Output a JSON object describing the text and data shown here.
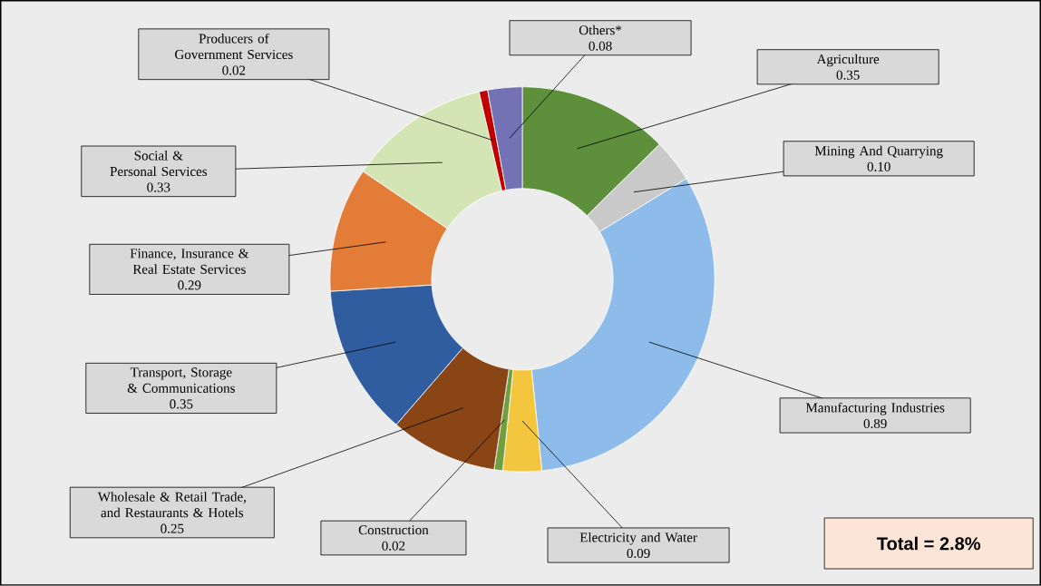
{
  "chart_data": {
    "type": "donut",
    "categories": [
      "Agriculture",
      "Mining And Quarrying",
      "Manufacturing Industries",
      "Electricity and Water",
      "Construction",
      "Wholesale & Retail Trade, and Restaurants & Hotels",
      "Transport, Storage & Communications",
      "Finance, Insurance & Real Estate Services",
      "Social & Personal Services",
      "Producers of Government Services",
      "Others*"
    ],
    "values": [
      0.35,
      0.1,
      0.89,
      0.09,
      0.02,
      0.25,
      0.35,
      0.29,
      0.33,
      0.02,
      0.08
    ],
    "colors": [
      "#5e8f3b",
      "#c9c9c9",
      "#8dbbea",
      "#f4c63d",
      "#6f9f3f",
      "#8a4516",
      "#2f5d9f",
      "#e27c37",
      "#d3e5b4",
      "#c00000",
      "#7272b4"
    ],
    "value_labels": [
      "0.35",
      "0.10",
      "0.89",
      "0.09",
      "0.02",
      "0.25",
      "0.35",
      "0.29",
      "0.33",
      "0.02",
      "0.08"
    ],
    "annotations": [
      "Total = 2.8%"
    ]
  }
}
